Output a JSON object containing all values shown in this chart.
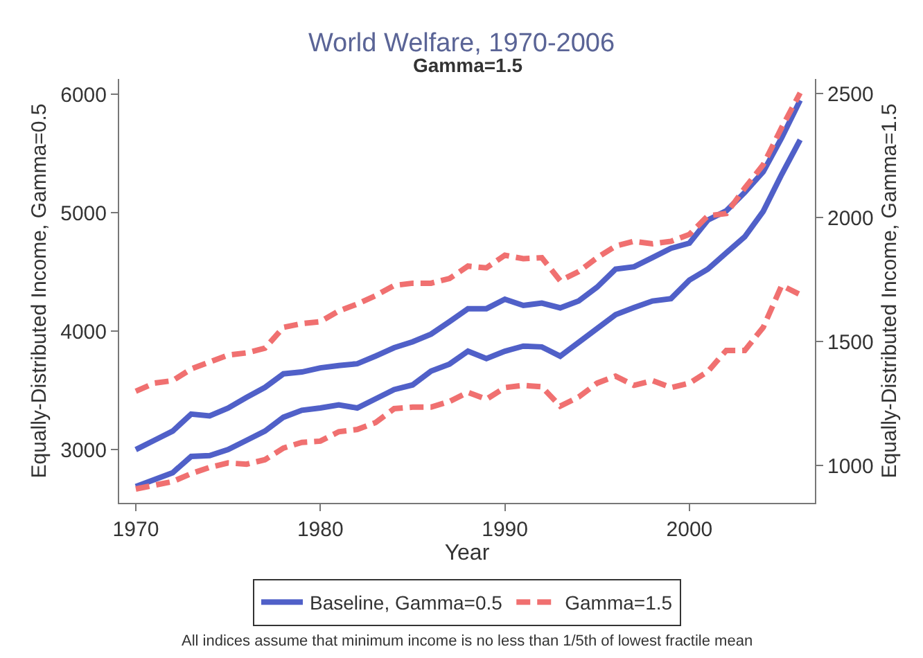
{
  "chart_data": {
    "type": "line",
    "title": "World Welfare, 1970-2006",
    "subtitle": "Gamma=1.5",
    "xlabel": "Year",
    "ylabel": "Equally-Distributed Income, Gamma=0.5",
    "y2label": "Equally-Distributed Income, Gamma=1.5",
    "x": [
      1970,
      1971,
      1972,
      1973,
      1974,
      1975,
      1976,
      1977,
      1978,
      1979,
      1980,
      1981,
      1982,
      1983,
      1984,
      1985,
      1986,
      1987,
      1988,
      1989,
      1990,
      1991,
      1992,
      1993,
      1994,
      1995,
      1996,
      1997,
      1998,
      1999,
      2000,
      2001,
      2002,
      2003,
      2004,
      2005,
      2006
    ],
    "series": [
      {
        "name": "Baseline, Gamma=0.5",
        "color": "#5060c8",
        "line_style": "solid",
        "values": [
          3000,
          3078,
          3156,
          3300,
          3285,
          3350,
          3440,
          3525,
          3640,
          3655,
          3690,
          3710,
          3725,
          3790,
          3860,
          3910,
          3975,
          4080,
          4190,
          4190,
          4270,
          4217,
          4237,
          4197,
          4255,
          4372,
          4524,
          4544,
          4622,
          4700,
          4743,
          4938,
          5016,
          5172,
          5347,
          5633,
          5950
        ]
      },
      {
        "color": "#5060c8",
        "line_style": "solid",
        "values": [
          2688,
          2746,
          2805,
          2942,
          2949,
          3000,
          3078,
          3156,
          3273,
          3332,
          3351,
          3378,
          3351,
          3429,
          3507,
          3546,
          3663,
          3722,
          3831,
          3769,
          3831,
          3874,
          3867,
          3789,
          3906,
          4023,
          4140,
          4199,
          4255,
          4275,
          4431,
          4524,
          4661,
          4797,
          5012,
          5324,
          5616
        ]
      },
      {
        "name": "Gamma=1.5",
        "color": "#f07070",
        "line_style": "dashed",
        "axis": "y2",
        "values": [
          1300,
          1333,
          1343,
          1390,
          1418,
          1446,
          1455,
          1474,
          1558,
          1573,
          1581,
          1624,
          1652,
          1686,
          1727,
          1736,
          1736,
          1755,
          1805,
          1798,
          1849,
          1835,
          1839,
          1746,
          1783,
          1839,
          1886,
          1905,
          1895,
          1905,
          1933,
          2008,
          2017,
          2120,
          2214,
          2364,
          2504
        ]
      },
      {
        "color": "#f07070",
        "line_style": "dashed",
        "axis": "y2",
        "values": [
          906,
          921,
          936,
          968,
          993,
          1011,
          1006,
          1024,
          1071,
          1094,
          1099,
          1137,
          1146,
          1174,
          1230,
          1236,
          1236,
          1259,
          1296,
          1268,
          1315,
          1324,
          1318,
          1240,
          1277,
          1333,
          1361,
          1324,
          1343,
          1315,
          1333,
          1380,
          1465,
          1465,
          1558,
          1727,
          1690
        ]
      }
    ],
    "xlim": [
      1969.1,
      2006.8
    ],
    "xticks": [
      1970,
      1980,
      1990,
      2000
    ],
    "ylim": [
      2550,
      6130
    ],
    "yticks": [
      3000,
      4000,
      5000,
      6000
    ],
    "y2lim": [
      850,
      2560
    ],
    "y2ticks": [
      1000,
      1500,
      2000,
      2500
    ],
    "legend": "bottom",
    "marker": "none",
    "annotations": [
      "All indices assume that minimum income is no less than 1/5th of lowest fractile mean"
    ]
  }
}
